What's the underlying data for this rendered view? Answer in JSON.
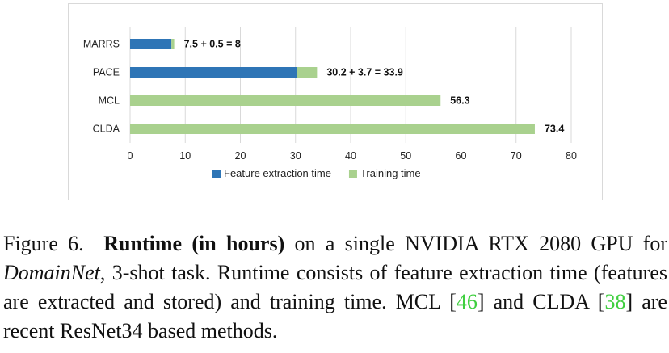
{
  "chart_data": {
    "type": "bar",
    "orientation": "horizontal",
    "stacked": true,
    "categories": [
      "MARRS",
      "PACE",
      "MCL",
      "CLDA"
    ],
    "series": [
      {
        "name": "Feature extraction time",
        "color": "#2e75b6",
        "values": [
          7.5,
          30.2,
          0,
          0
        ]
      },
      {
        "name": "Training time",
        "color": "#a9d18e",
        "values": [
          0.5,
          3.7,
          56.3,
          73.4
        ]
      }
    ],
    "data_labels": [
      "7.5 + 0.5 = 8",
      "30.2 + 3.7 = 33.9",
      "56.3",
      "73.4"
    ],
    "xlim": [
      0,
      80
    ],
    "xticks": [
      "0",
      "10",
      "20",
      "30",
      "40",
      "50",
      "60",
      "70",
      "80"
    ],
    "grid": "vertical",
    "legend_position": "bottom"
  },
  "caption": {
    "figure_label": "Figure 6.",
    "bold_text": "Runtime (in hours)",
    "text_1": "on a single NVIDIA RTX 2080 GPU for",
    "italic_text": "DomainNet",
    "text_2": ", 3-shot task. Runtime consists of feature extraction time (features are extracted and stored) and training time. MCL",
    "ref_1": "46",
    "text_3": "and CLDA",
    "ref_2": "38",
    "text_4": "are recent ResNet34 based methods."
  }
}
